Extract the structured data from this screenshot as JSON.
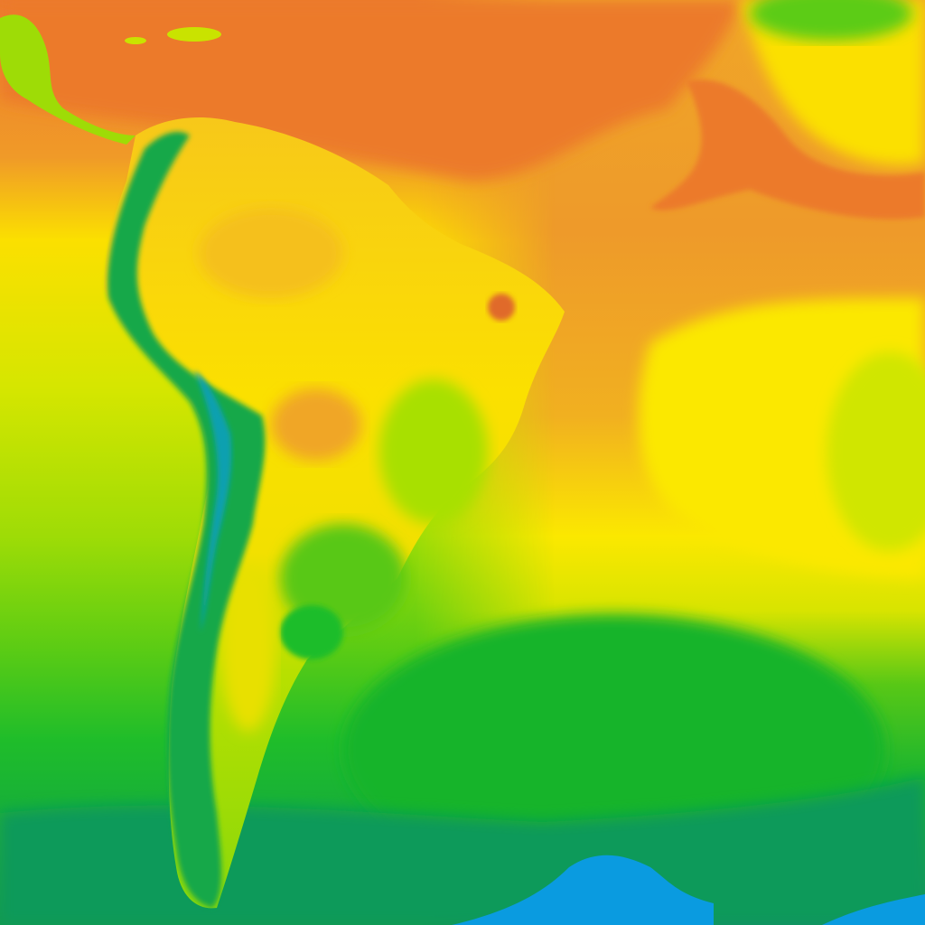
{
  "map": {
    "colors": {
      "hot_red": "#d9432a",
      "orange": "#ec7a2c",
      "light_orange": "#f0a628",
      "yellow": "#fbe800",
      "yellow_green": "#c9e300",
      "light_green": "#7fd60a",
      "green": "#1fbd2a",
      "deep_green": "#0a9a4f",
      "teal": "#0a8e6a",
      "cold_blue": "#0a9be0"
    }
  }
}
